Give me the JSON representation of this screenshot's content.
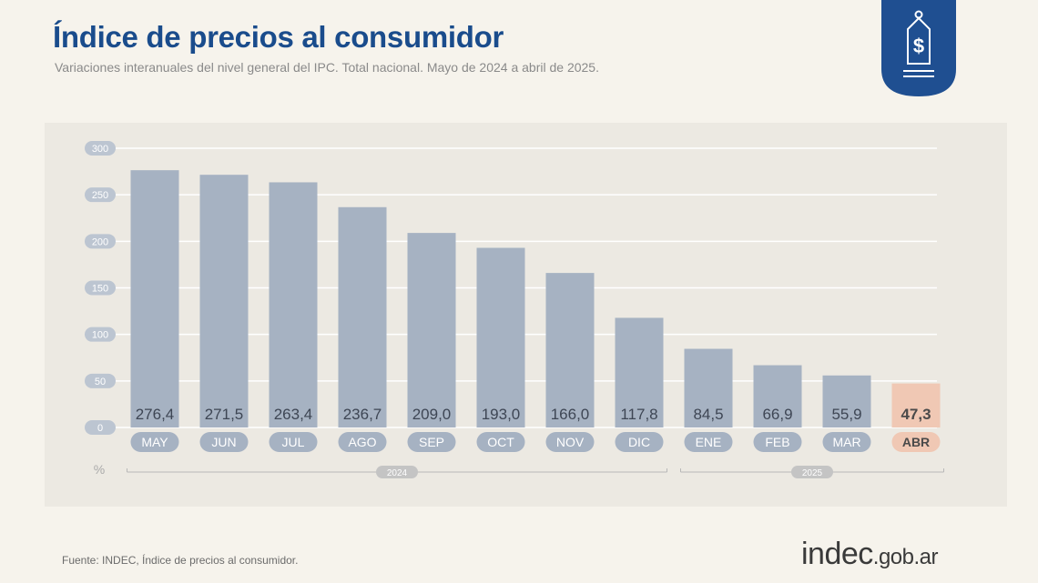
{
  "header": {
    "title": "Índice de precios al consumidor",
    "subtitle": "Variaciones interanuales del nivel general del IPC. Total nacional. Mayo de 2024 a abril de 2025."
  },
  "badge": {
    "icon": "price-tag-dollar-icon",
    "symbol": "$",
    "color": "#1f4f91"
  },
  "footer": {
    "source": "Fuente: INDEC, Índice de precios al consumidor.",
    "brand_main": "indec",
    "brand_suffix": ".gob.ar"
  },
  "chart_data": {
    "type": "bar",
    "categories": [
      "MAY",
      "JUN",
      "JUL",
      "AGO",
      "SEP",
      "OCT",
      "NOV",
      "DIC",
      "ENE",
      "FEB",
      "MAR",
      "ABR"
    ],
    "values": [
      276.4,
      271.5,
      263.4,
      236.7,
      209.0,
      193.0,
      166.0,
      117.8,
      84.5,
      66.9,
      55.9,
      47.3
    ],
    "value_labels": [
      "276,4",
      "271,5",
      "263,4",
      "236,7",
      "209,0",
      "193,0",
      "166,0",
      "117,8",
      "84,5",
      "66,9",
      "55,9",
      "47,3"
    ],
    "highlight_index": 11,
    "ylim": [
      0,
      300
    ],
    "yticks": [
      0,
      50,
      100,
      150,
      200,
      250,
      300
    ],
    "ylabel": "%",
    "grid": true,
    "year_groups": [
      {
        "label": "2024",
        "from": 0,
        "to": 7
      },
      {
        "label": "2025",
        "from": 8,
        "to": 11
      }
    ],
    "colors": {
      "bar": "#a6b2c2",
      "bar_highlight": "#f0c8b4",
      "value_text": "#3e4654",
      "value_text_highlight": "#4a4a4a",
      "month_pill": "#a6b2c2",
      "month_pill_highlight": "#f0c8b4",
      "tick_pill": "#bcc5d1",
      "grid": "#ffffff"
    }
  }
}
